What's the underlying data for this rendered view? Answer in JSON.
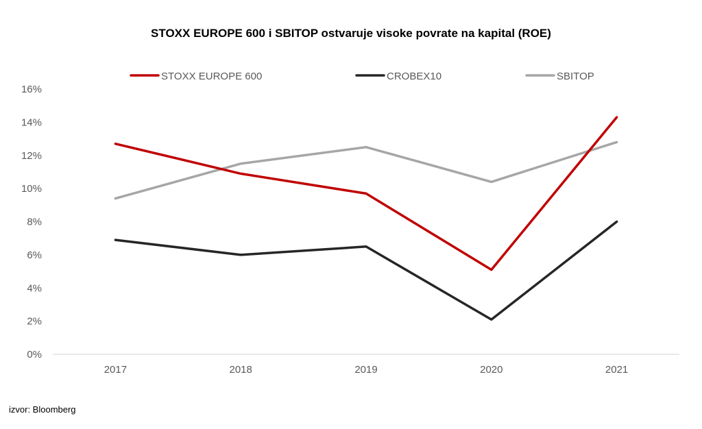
{
  "chart_data": {
    "type": "line",
    "title": "STOXX EUROPE 600 i SBITOP ostvaruje visoke povrate na kapital (ROE)",
    "xlabel": "",
    "ylabel": "",
    "categories": [
      "2017",
      "2018",
      "2019",
      "2020",
      "2021"
    ],
    "ylim": [
      0,
      16
    ],
    "yticks": [
      0,
      2,
      4,
      6,
      8,
      10,
      12,
      14,
      16
    ],
    "ytick_labels": [
      "0%",
      "2%",
      "4%",
      "6%",
      "8%",
      "10%",
      "12%",
      "14%",
      "16%"
    ],
    "grid": false,
    "legend_position": "top",
    "series": [
      {
        "name": "STOXX EUROPE 600",
        "color": "#C00000",
        "values": [
          12.7,
          10.9,
          9.7,
          5.1,
          14.3
        ]
      },
      {
        "name": "CROBEX10",
        "color": "#262626",
        "values": [
          6.9,
          6.0,
          6.5,
          2.1,
          8.0
        ]
      },
      {
        "name": "SBITOP",
        "color": "#A6A6A6",
        "values": [
          9.4,
          11.5,
          12.5,
          10.4,
          12.8
        ]
      }
    ]
  },
  "source": "izvor: Bloomberg"
}
